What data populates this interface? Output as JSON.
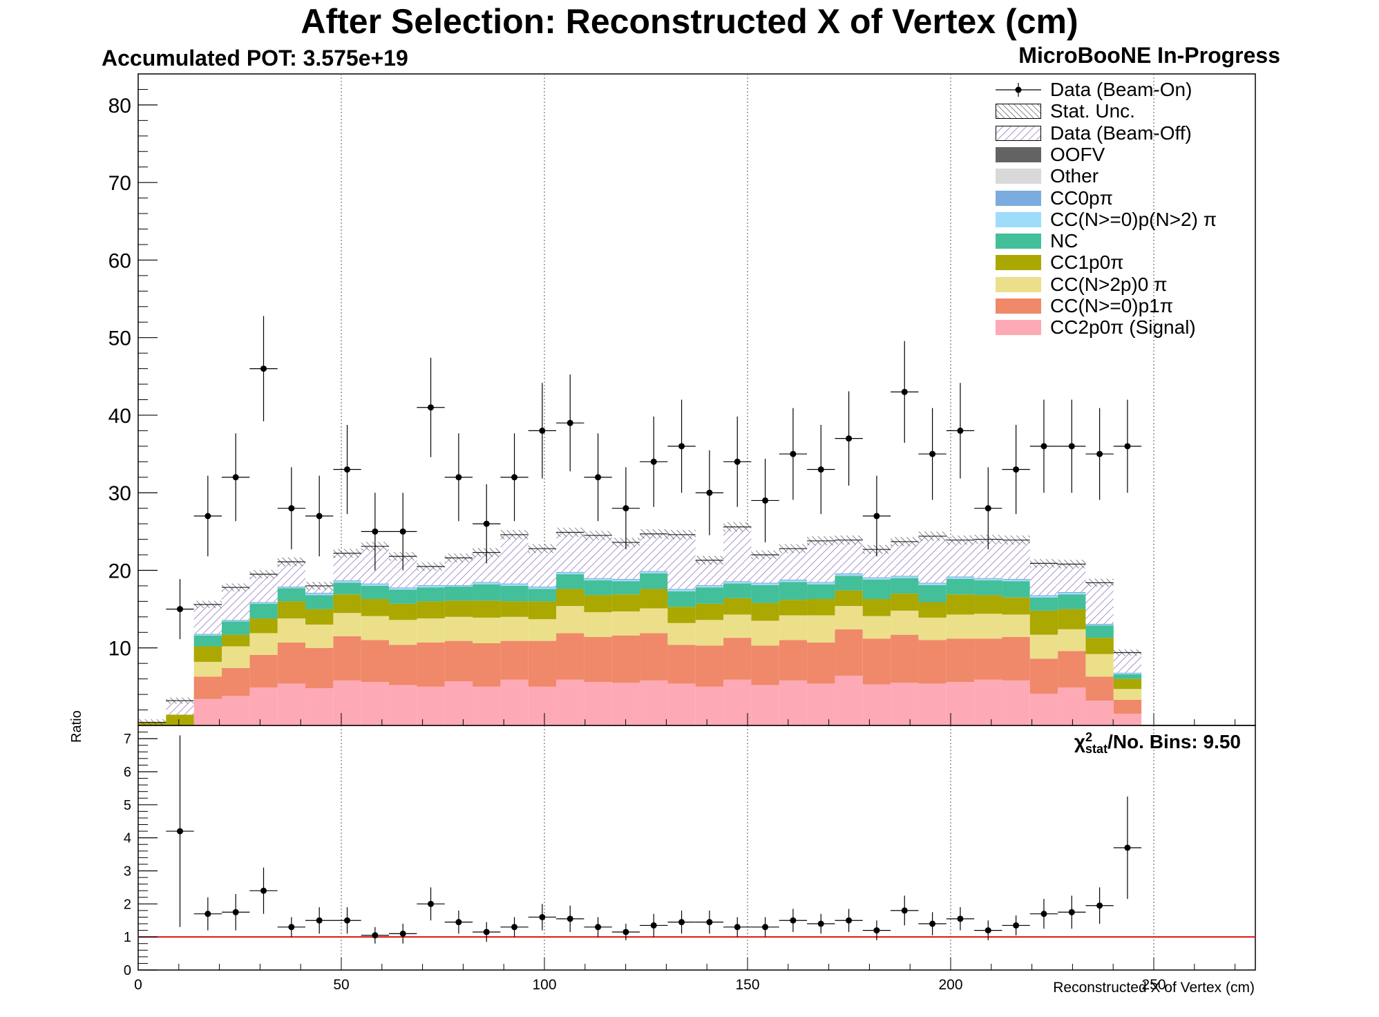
{
  "title": "After Selection: Reconstructed X of Vertex (cm)",
  "pot_label": "Accumulated POT: 3.575e+19",
  "experiment_label": "MicroBooNE In-Progress",
  "ratio_ylabel": "Ratio",
  "xlabel": "Reconstructed X of Vertex (cm)",
  "chi2_label": "/No. Bins: 9.50",
  "chi2_symbol": "χ",
  "chi2_sup": "2",
  "chi2_sub": "stat",
  "legend": [
    {
      "label": "Data (Beam-On)",
      "kind": "marker"
    },
    {
      "label": "Stat. Unc.",
      "kind": "hatch"
    },
    {
      "label": "Data (Beam-Off)",
      "kind": "hatch-purple"
    },
    {
      "label": "OOFV",
      "color": "#636363"
    },
    {
      "label": "Other",
      "color": "#d9d9d9"
    },
    {
      "label": "CC0pπ",
      "color": "#7aacdf"
    },
    {
      "label": "CC(N>=0)p(N>2) π",
      "color": "#9fdcfa"
    },
    {
      "label": "NC",
      "color": "#43bf9a"
    },
    {
      "label": "CC1p0π",
      "color": "#aaa801"
    },
    {
      "label": "CC(N>2p)0 π",
      "color": "#ecdf8a"
    },
    {
      "label": "CC(N>=0)p1π",
      "color": "#ef8969"
    },
    {
      "label": "CC2p0π (Signal)",
      "color": "#fea9b6"
    }
  ],
  "chart_data": [
    {
      "type": "bar",
      "stacked": true,
      "xlim": [
        0,
        275
      ],
      "ylim": [
        0,
        84
      ],
      "yticks": [
        10,
        20,
        30,
        40,
        50,
        60,
        70,
        80
      ],
      "xticks": [
        50,
        100,
        150,
        200,
        250
      ],
      "bin_width": 6.86,
      "bins": [
        3.43,
        10.29,
        17.15,
        24.01,
        30.87,
        37.73,
        44.59,
        51.45,
        58.31,
        65.17,
        72.03,
        78.89,
        85.75,
        92.61,
        99.47,
        106.33,
        113.19,
        120.05,
        126.91,
        133.77,
        140.63,
        147.49,
        154.35,
        161.21,
        168.07,
        174.93,
        181.79,
        188.65,
        195.51,
        202.37,
        209.23,
        216.09,
        222.95,
        229.81,
        236.67,
        243.53
      ],
      "series": [
        {
          "name": "CC2p0π (Signal)",
          "color": "#fea9b6",
          "values": [
            0,
            0,
            3.4,
            3.8,
            4.9,
            5.4,
            4.8,
            5.8,
            5.6,
            5.2,
            5.0,
            5.7,
            5.0,
            5.9,
            5.0,
            5.9,
            5.6,
            5.5,
            5.8,
            5.4,
            5.0,
            5.9,
            5.2,
            5.8,
            5.4,
            6.4,
            5.3,
            5.5,
            5.4,
            5.6,
            5.9,
            5.8,
            4.1,
            4.9,
            3.2,
            1.5
          ]
        },
        {
          "name": "CC(N>=0)p1π",
          "color": "#ef8969",
          "values": [
            0,
            0,
            2.9,
            3.6,
            4.2,
            5.3,
            5.2,
            5.7,
            5.4,
            5.2,
            5.7,
            5.2,
            5.6,
            5.0,
            5.9,
            6.0,
            5.8,
            6.1,
            6.1,
            5.0,
            5.3,
            5.4,
            5.1,
            5.2,
            5.3,
            6.0,
            5.9,
            6.2,
            5.6,
            5.6,
            5.3,
            5.6,
            4.5,
            4.7,
            3.1,
            1.8
          ]
        },
        {
          "name": "CC(N>2p)0 π",
          "color": "#ecdf8a",
          "values": [
            0,
            0,
            1.9,
            2.8,
            2.8,
            3.1,
            3.0,
            3.0,
            3.1,
            3.2,
            3.1,
            3.1,
            3.3,
            3.1,
            2.8,
            3.5,
            3.2,
            3.1,
            3.2,
            2.8,
            3.3,
            3.0,
            3.2,
            3.2,
            3.5,
            3.0,
            2.9,
            3.1,
            2.9,
            3.1,
            3.2,
            2.9,
            3.1,
            2.8,
            2.9,
            1.4
          ]
        },
        {
          "name": "CC1p0π",
          "color": "#aaa801",
          "values": [
            0.4,
            1.4,
            2.0,
            1.5,
            1.9,
            2.2,
            2.0,
            2.4,
            2.2,
            2.1,
            2.2,
            2.1,
            2.2,
            2.0,
            2.3,
            2.2,
            2.2,
            2.2,
            2.5,
            2.1,
            2.1,
            2.1,
            2.3,
            2.0,
            2.1,
            2.0,
            2.2,
            2.2,
            2.0,
            2.6,
            2.4,
            2.2,
            3.1,
            2.6,
            2.1,
            1.3
          ]
        },
        {
          "name": "NC",
          "color": "#43bf9a",
          "values": [
            0,
            0,
            1.4,
            1.7,
            1.9,
            1.7,
            1.8,
            1.5,
            1.7,
            1.8,
            1.8,
            1.8,
            2.1,
            2.0,
            1.6,
            1.9,
            1.9,
            1.7,
            2.0,
            2.0,
            2.1,
            1.9,
            2.3,
            2.3,
            1.9,
            1.9,
            2.5,
            2.0,
            2.2,
            2.0,
            1.9,
            2.1,
            1.7,
            1.9,
            1.6,
            0.6
          ]
        },
        {
          "name": "CC(N>=0)p(N>2) π",
          "color": "#9fdcfa",
          "values": [
            0,
            0,
            0.1,
            0.1,
            0.1,
            0.1,
            0.2,
            0.2,
            0.2,
            0.2,
            0.2,
            0.1,
            0.2,
            0.2,
            0.2,
            0.2,
            0.2,
            0.2,
            0.2,
            0.2,
            0.2,
            0.2,
            0.2,
            0.2,
            0.2,
            0.2,
            0.2,
            0.2,
            0.2,
            0.2,
            0.2,
            0.2,
            0.2,
            0.2,
            0.1,
            0.1
          ]
        },
        {
          "name": "CC0pπ",
          "color": "#7aacdf",
          "values": [
            0,
            0,
            0.1,
            0.1,
            0.1,
            0.1,
            0.1,
            0.1,
            0.1,
            0.1,
            0.1,
            0.1,
            0.1,
            0.1,
            0.1,
            0.1,
            0.1,
            0.1,
            0.1,
            0.1,
            0.1,
            0.1,
            0.1,
            0.1,
            0.1,
            0.1,
            0.1,
            0.1,
            0.1,
            0.1,
            0.1,
            0.1,
            0.1,
            0.1,
            0.1,
            0.1
          ]
        },
        {
          "name": "Data (Beam-Off)",
          "color": "#8c6fbf",
          "hatched": true,
          "values": [
            0,
            1.8,
            3.8,
            4.2,
            3.6,
            3.2,
            0.9,
            3.5,
            4.8,
            4.0,
            2.4,
            3.5,
            3.8,
            6.3,
            4.9,
            5.1,
            5.5,
            4.7,
            4.8,
            7.0,
            3.2,
            7.0,
            3.6,
            4.0,
            5.3,
            4.3,
            3.6,
            4.4,
            6.0,
            4.7,
            5.0,
            5.0,
            4.1,
            3.6,
            5.3,
            2.6
          ]
        }
      ],
      "data_beam_on": {
        "name": "Data (Beam-On)",
        "values": [
          15,
          27,
          32,
          46,
          28,
          27,
          33,
          25,
          25,
          41,
          32,
          26,
          32,
          38,
          39,
          32,
          28,
          34,
          36,
          30,
          34,
          29,
          35,
          33,
          37,
          27,
          43,
          35,
          38,
          28,
          33,
          36,
          36,
          35,
          36
        ],
        "x": [
          10.29,
          17.15,
          24.01,
          30.87,
          37.73,
          44.59,
          51.45,
          58.31,
          65.17,
          72.03,
          78.89,
          85.75,
          92.61,
          99.47,
          106.33,
          113.19,
          120.05,
          126.91,
          133.77,
          140.63,
          147.49,
          154.35,
          161.21,
          168.07,
          174.93,
          181.79,
          188.65,
          195.51,
          202.37,
          209.23,
          216.09,
          222.95,
          229.81,
          236.67,
          243.53
        ]
      }
    },
    {
      "type": "scatter",
      "name": "ratio",
      "xlim": [
        0,
        275
      ],
      "ylim": [
        0,
        7.4
      ],
      "yticks": [
        0,
        1,
        2,
        3,
        4,
        5,
        6,
        7
      ],
      "xticks": [
        0,
        50,
        100,
        150,
        200,
        250
      ],
      "reference_line": 1,
      "x": [
        10.29,
        17.15,
        24.01,
        30.87,
        37.73,
        44.59,
        51.45,
        58.31,
        65.17,
        72.03,
        78.89,
        85.75,
        92.61,
        99.47,
        106.33,
        113.19,
        120.05,
        126.91,
        133.77,
        140.63,
        147.49,
        154.35,
        161.21,
        168.07,
        174.93,
        181.79,
        188.65,
        195.51,
        202.37,
        209.23,
        216.09,
        222.95,
        229.81,
        236.67,
        243.53
      ],
      "y": [
        4.2,
        1.7,
        1.75,
        2.4,
        1.3,
        1.5,
        1.5,
        1.05,
        1.1,
        2.0,
        1.45,
        1.15,
        1.3,
        1.6,
        1.55,
        1.3,
        1.15,
        1.35,
        1.45,
        1.45,
        1.3,
        1.3,
        1.5,
        1.4,
        1.5,
        1.2,
        1.8,
        1.4,
        1.55,
        1.2,
        1.35,
        1.7,
        1.75,
        1.95,
        3.7
      ],
      "yerr": [
        2.9,
        0.5,
        0.55,
        0.7,
        0.3,
        0.4,
        0.4,
        0.25,
        0.3,
        0.5,
        0.35,
        0.3,
        0.3,
        0.4,
        0.4,
        0.3,
        0.25,
        0.35,
        0.35,
        0.35,
        0.3,
        0.3,
        0.35,
        0.3,
        0.35,
        0.3,
        0.45,
        0.35,
        0.35,
        0.3,
        0.3,
        0.45,
        0.5,
        0.55,
        1.55
      ]
    }
  ]
}
